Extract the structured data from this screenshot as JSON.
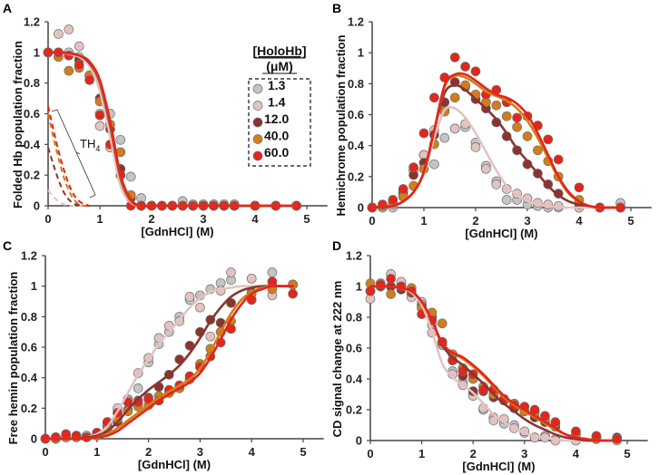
{
  "colors": {
    "1.3": "#c4c4c4",
    "1.4": "#e3c3c1",
    "12.0": "#8a3430",
    "40.0": "#d27d1c",
    "60.0": "#e2261b"
  },
  "legend": {
    "title": "[HoloHb]",
    "unit": "(μM)",
    "entries": [
      "1.3",
      "1.4",
      "12.0",
      "40.0",
      "60.0"
    ]
  },
  "annotation": {
    "label": "TH",
    "subscript": "4"
  },
  "chart_data": [
    {
      "panel": "A",
      "type": "scatter+line",
      "xlabel": "[GdnHCl] (M)",
      "ylabel": "Folded Hb population fraction",
      "xlim": [
        0,
        5
      ],
      "ylim": [
        0,
        1.2
      ],
      "xticks": [
        "0",
        "1",
        "2",
        "3",
        "4",
        "5"
      ],
      "yticks": [
        "0",
        "0.2",
        "0.4",
        "0.6",
        "0.8",
        "1",
        "1.2"
      ],
      "x": [
        0,
        0.2,
        0.4,
        0.6,
        0.8,
        1.0,
        1.2,
        1.4,
        1.6,
        1.8,
        2.0,
        2.2,
        2.4,
        2.6,
        2.8,
        3.0,
        3.2,
        3.4,
        3.6,
        4.0,
        4.4,
        4.8
      ],
      "points": {
        "1.3": [
          1,
          1,
          1,
          0.97,
          0.85,
          0.6,
          0.6,
          0.43,
          0.19,
          0.05,
          0,
          0,
          0,
          0.03,
          0.01,
          0.01,
          0.01,
          0.01,
          0.01,
          0,
          0,
          0
        ],
        "1.4": [
          1,
          1.12,
          1.15,
          1.04,
          0.85,
          0.52,
          0.38,
          0.2,
          0.05,
          0,
          0,
          0,
          0,
          0,
          0,
          0,
          0,
          0,
          0,
          0,
          0,
          0
        ],
        "12.0": [
          1,
          1,
          0.98,
          0.95,
          0.85,
          0.7,
          0.5,
          0.24,
          0.05,
          0,
          0,
          0,
          0,
          0,
          0,
          0,
          0,
          0,
          0,
          0,
          0,
          0
        ],
        "40.0": [
          1,
          0.97,
          0.88,
          0.9,
          0.85,
          0.68,
          0.53,
          0.35,
          0.07,
          0,
          0,
          0,
          0,
          0,
          0,
          0,
          0,
          0,
          0,
          0,
          0,
          0
        ],
        "60.0": [
          1,
          1,
          0.98,
          0.92,
          0.82,
          0.59,
          0.4,
          0.2,
          0,
          0,
          0,
          0,
          0,
          0,
          0,
          0,
          0,
          0,
          0,
          0,
          0,
          0
        ]
      },
      "curve_x_step": 0.2,
      "curves": {
        "1.4": [
          1,
          1,
          0.99,
          0.97,
          0.91,
          0.75,
          0.45,
          0.13,
          0.02,
          0,
          0,
          0,
          0,
          0,
          0,
          0,
          0,
          0,
          0,
          0,
          0,
          0,
          0,
          0,
          0
        ],
        "12.0": [
          1,
          1,
          0.995,
          0.98,
          0.93,
          0.8,
          0.52,
          0.18,
          0.03,
          0,
          0,
          0,
          0,
          0,
          0,
          0,
          0,
          0,
          0,
          0,
          0,
          0,
          0,
          0,
          0
        ],
        "40.0": [
          1,
          1,
          0.995,
          0.98,
          0.94,
          0.81,
          0.54,
          0.19,
          0.035,
          0,
          0,
          0,
          0,
          0,
          0,
          0,
          0,
          0,
          0,
          0,
          0,
          0,
          0,
          0,
          0
        ],
        "60.0": [
          1,
          1,
          0.995,
          0.98,
          0.94,
          0.82,
          0.55,
          0.2,
          0.04,
          0,
          0,
          0,
          0,
          0,
          0,
          0,
          0,
          0,
          0,
          0,
          0,
          0,
          0,
          0,
          0
        ]
      },
      "dashed_x_step": 0.1,
      "dashed_TH4": {
        "1.4": [
          0.1,
          0.06,
          0.03,
          0.01,
          0,
          0,
          0,
          0,
          0
        ],
        "12.0": [
          0.38,
          0.27,
          0.17,
          0.09,
          0.04,
          0.015,
          0.005,
          0,
          0
        ],
        "40.0": [
          0.6,
          0.45,
          0.31,
          0.19,
          0.1,
          0.04,
          0.01,
          0,
          0
        ],
        "60.0": [
          0.65,
          0.5,
          0.36,
          0.24,
          0.14,
          0.07,
          0.03,
          0.01,
          0
        ]
      }
    },
    {
      "panel": "B",
      "type": "scatter+line",
      "xlabel": "[GdnHCl] (M)",
      "ylabel": "Hemichrome population fraction",
      "xlim": [
        0,
        5
      ],
      "ylim": [
        0,
        1.2
      ],
      "xticks": [
        "0",
        "1",
        "2",
        "3",
        "4",
        "5"
      ],
      "yticks": [
        "0",
        "0.2",
        "0.4",
        "0.6",
        "0.8",
        "1",
        "1.2"
      ],
      "x": [
        0,
        0.2,
        0.4,
        0.6,
        0.8,
        1.0,
        1.2,
        1.4,
        1.6,
        1.8,
        2.0,
        2.2,
        2.4,
        2.6,
        2.8,
        3.0,
        3.2,
        3.4,
        3.6,
        4.0,
        4.4,
        4.8
      ],
      "points": {
        "1.3": [
          0,
          0,
          0,
          0.07,
          0.24,
          0.34,
          0.28,
          0.45,
          0.51,
          0.52,
          0.42,
          0.27,
          0.17,
          0.05,
          0.05,
          0.02,
          0.01,
          0,
          0,
          0,
          0,
          0.03
        ],
        "1.4": [
          0,
          0,
          0.02,
          0.08,
          0.24,
          0.34,
          0.5,
          0.63,
          0.51,
          0.54,
          0.39,
          0.25,
          0.15,
          0.12,
          0.09,
          0.06,
          0.03,
          0.02,
          0.01,
          0,
          0,
          0
        ],
        "12.0": [
          0,
          0.01,
          0.03,
          0.1,
          0.21,
          0.29,
          0.47,
          0.68,
          0.81,
          0.78,
          0.7,
          0.64,
          0.55,
          0.46,
          0.37,
          0.28,
          0.22,
          0.15,
          0.09,
          0.02,
          0,
          0
        ],
        "40.0": [
          0,
          0.01,
          0.03,
          0.07,
          0.14,
          0.25,
          0.41,
          0.62,
          0.71,
          0.79,
          0.73,
          0.68,
          0.66,
          0.59,
          0.52,
          0.46,
          0.37,
          0.3,
          0.2,
          0.05,
          0,
          0
        ],
        "60.0": [
          0,
          0.02,
          0.05,
          0.12,
          0.26,
          0.48,
          0.71,
          0.84,
          0.97,
          0.91,
          0.88,
          0.73,
          0.76,
          0.68,
          0.58,
          0.59,
          0.53,
          0.44,
          0.31,
          0.13,
          0,
          0
        ]
      },
      "curve_x_step": 0.2,
      "curves": {
        "1.4": [
          0,
          0.005,
          0.01,
          0.04,
          0.1,
          0.22,
          0.45,
          0.63,
          0.64,
          0.58,
          0.48,
          0.36,
          0.24,
          0.14,
          0.08,
          0.04,
          0.02,
          0.01,
          0,
          0,
          0,
          0,
          0,
          0,
          0
        ],
        "12.0": [
          0,
          0.005,
          0.01,
          0.04,
          0.1,
          0.23,
          0.5,
          0.74,
          0.79,
          0.76,
          0.7,
          0.64,
          0.57,
          0.48,
          0.38,
          0.3,
          0.22,
          0.14,
          0.08,
          0.04,
          0.02,
          0.01,
          0,
          0,
          0
        ],
        "40.0": [
          0,
          0.005,
          0.01,
          0.04,
          0.1,
          0.23,
          0.5,
          0.78,
          0.85,
          0.84,
          0.8,
          0.75,
          0.72,
          0.69,
          0.64,
          0.56,
          0.45,
          0.32,
          0.19,
          0.09,
          0.04,
          0.01,
          0,
          0,
          0
        ],
        "60.0": [
          0,
          0.005,
          0.01,
          0.04,
          0.1,
          0.23,
          0.5,
          0.79,
          0.86,
          0.86,
          0.82,
          0.77,
          0.73,
          0.71,
          0.67,
          0.6,
          0.48,
          0.34,
          0.2,
          0.1,
          0.04,
          0.01,
          0,
          0,
          0
        ]
      }
    },
    {
      "panel": "C",
      "type": "scatter+line",
      "xlabel": "[GdnHCl] (M)",
      "ylabel": "Free hemin population fraction",
      "xlim": [
        0,
        5
      ],
      "ylim": [
        0,
        1.2
      ],
      "xticks": [
        "0",
        "1",
        "2",
        "3",
        "4",
        "5"
      ],
      "yticks": [
        "0",
        "0.2",
        "0.4",
        "0.6",
        "0.8",
        "1",
        "1.2"
      ],
      "x": [
        0,
        0.2,
        0.4,
        0.6,
        0.8,
        1.0,
        1.2,
        1.4,
        1.6,
        1.8,
        2.0,
        2.2,
        2.4,
        2.6,
        2.8,
        3.0,
        3.2,
        3.4,
        3.6,
        4.0,
        4.4,
        4.8
      ],
      "points": {
        "1.3": [
          0,
          0,
          0.01,
          0.01,
          0.02,
          0.04,
          0.08,
          0.17,
          0.26,
          0.33,
          0.5,
          0.62,
          0.7,
          0.8,
          0.91,
          0.94,
          0.98,
          1.02,
          1.04,
          1.05,
          1.09,
          1.01
        ],
        "1.4": [
          0,
          0.01,
          0.01,
          0.02,
          0.02,
          0.03,
          0.1,
          0.2,
          0.25,
          0.43,
          0.53,
          0.66,
          0.74,
          0.77,
          0.93,
          0.86,
          0.67,
          0.97,
          1.09,
          1.05,
          0.94,
          1.01
        ],
        "12.0": [
          0,
          0,
          0.01,
          0.01,
          0.01,
          0.03,
          0.07,
          0.11,
          0.19,
          0.25,
          0.27,
          0.34,
          0.42,
          0.52,
          0.61,
          0.7,
          0.78,
          0.76,
          0.89,
          0.96,
          1,
          1.01
        ],
        "40.0": [
          0,
          0,
          0.01,
          0.01,
          0.01,
          0.02,
          0.06,
          0.13,
          0.18,
          0.21,
          0.22,
          0.28,
          0.3,
          0.33,
          0.39,
          0.49,
          0.59,
          0.7,
          0.77,
          0.95,
          0.98,
          1.01
        ],
        "60.0": [
          0,
          0.01,
          0.03,
          0.02,
          0.01,
          0.04,
          0.11,
          0.17,
          0.24,
          0.24,
          0.26,
          0.25,
          0.32,
          0.35,
          0.41,
          0.47,
          0.54,
          0.63,
          0.72,
          0.91,
          1.03,
          0.95
        ]
      },
      "curve_x_step": 0.2,
      "curves": {
        "1.4": [
          0,
          0,
          0,
          0,
          0.01,
          0.03,
          0.08,
          0.18,
          0.3,
          0.42,
          0.52,
          0.62,
          0.7,
          0.78,
          0.86,
          0.92,
          0.96,
          0.98,
          0.99,
          1,
          1,
          1,
          1,
          1,
          1
        ],
        "12.0": [
          0,
          0,
          0,
          0,
          0.01,
          0.02,
          0.05,
          0.11,
          0.19,
          0.26,
          0.32,
          0.37,
          0.42,
          0.48,
          0.56,
          0.66,
          0.77,
          0.86,
          0.93,
          0.97,
          0.99,
          1,
          1,
          1,
          1
        ],
        "40.0": [
          0,
          0,
          0,
          0,
          0,
          0.01,
          0.03,
          0.07,
          0.12,
          0.17,
          0.22,
          0.27,
          0.31,
          0.35,
          0.39,
          0.46,
          0.57,
          0.7,
          0.82,
          0.91,
          0.96,
          0.99,
          1,
          1,
          1
        ],
        "60.0": [
          0,
          0,
          0,
          0,
          0,
          0.01,
          0.02,
          0.05,
          0.1,
          0.15,
          0.2,
          0.25,
          0.29,
          0.33,
          0.37,
          0.43,
          0.53,
          0.65,
          0.78,
          0.88,
          0.95,
          0.98,
          1,
          1,
          1
        ]
      }
    },
    {
      "panel": "D",
      "type": "scatter+line",
      "xlabel": "[GdnHCl] (M)",
      "ylabel": "CD signal change at  222 nm",
      "xlim": [
        0,
        5
      ],
      "ylim": [
        0,
        1.2
      ],
      "xticks": [
        "0",
        "1",
        "2",
        "3",
        "4",
        "5"
      ],
      "yticks": [
        "0",
        "0.2",
        "0.4",
        "0.6",
        "0.8",
        "1",
        "1.2"
      ],
      "x": [
        0,
        0.2,
        0.4,
        0.6,
        0.8,
        1.0,
        1.2,
        1.4,
        1.6,
        1.8,
        2.0,
        2.2,
        2.4,
        2.6,
        2.8,
        3.0,
        3.2,
        3.4,
        3.6,
        4.0,
        4.4,
        4.8
      ],
      "points": {
        "1.3": [
          0.97,
          1.0,
          1.0,
          1.02,
          0.95,
          0.9,
          0.75,
          0.62,
          0.45,
          0.38,
          0.3,
          0.2,
          0.15,
          0.11,
          0.1,
          0.05,
          0.02,
          0.03,
          0.01,
          0,
          0.02,
          0.01
        ],
        "1.4": [
          0.92,
          1.02,
          1.08,
          1.03,
          0.93,
          0.88,
          0.7,
          0.63,
          0.43,
          0.36,
          0.29,
          0.21,
          0.13,
          0.14,
          0.08,
          0.06,
          0.02,
          0.02,
          0,
          0,
          0.01,
          0
        ],
        "12.0": [
          0.97,
          1.0,
          1.0,
          0.98,
          0.96,
          0.87,
          0.8,
          0.64,
          0.52,
          0.42,
          0.32,
          0.32,
          0.28,
          0.26,
          0.21,
          0.19,
          0.15,
          0.12,
          0.09,
          0.04,
          0.02,
          0.02
        ],
        "40.0": [
          1.02,
          1.02,
          0.95,
          1.0,
          0.99,
          0.86,
          0.83,
          0.76,
          0.56,
          0.47,
          0.4,
          0.35,
          0.3,
          0.27,
          0.24,
          0.19,
          0.18,
          0.14,
          0.11,
          0.04,
          0.01,
          0.01
        ],
        "60.0": [
          0.97,
          1.01,
          1.05,
          1.0,
          0.97,
          0.82,
          0.78,
          0.64,
          0.52,
          0.45,
          0.43,
          0.33,
          0.33,
          0.27,
          0.23,
          0.22,
          0.2,
          0.16,
          0.12,
          0.06,
          0.03,
          0.01
        ]
      },
      "curve_x_step": 0.2,
      "curves": {
        "1.4": [
          1,
          1,
          1,
          0.99,
          0.96,
          0.88,
          0.71,
          0.5,
          0.41,
          0.36,
          0.31,
          0.24,
          0.17,
          0.12,
          0.08,
          0.05,
          0.03,
          0.02,
          0.01,
          0,
          0,
          0,
          0,
          0,
          0
        ],
        "12.0": [
          1,
          1,
          1,
          0.99,
          0.97,
          0.9,
          0.78,
          0.62,
          0.54,
          0.49,
          0.43,
          0.37,
          0.3,
          0.24,
          0.19,
          0.14,
          0.1,
          0.07,
          0.04,
          0.02,
          0.01,
          0,
          0,
          0,
          0
        ],
        "40.0": [
          1,
          1,
          1,
          0.99,
          0.97,
          0.9,
          0.78,
          0.63,
          0.57,
          0.53,
          0.48,
          0.42,
          0.35,
          0.28,
          0.23,
          0.19,
          0.15,
          0.11,
          0.07,
          0.04,
          0.02,
          0.01,
          0,
          0,
          0
        ],
        "60.0": [
          1,
          1,
          1,
          0.99,
          0.97,
          0.9,
          0.78,
          0.63,
          0.57,
          0.54,
          0.49,
          0.43,
          0.36,
          0.29,
          0.24,
          0.2,
          0.16,
          0.12,
          0.08,
          0.04,
          0.02,
          0.01,
          0,
          0,
          0
        ]
      }
    }
  ]
}
